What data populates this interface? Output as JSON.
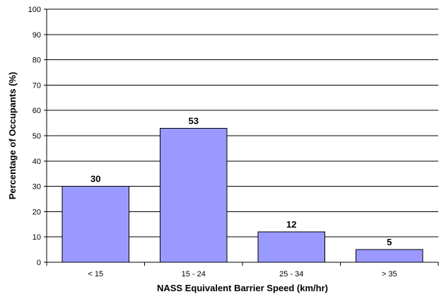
{
  "chart_data": {
    "type": "bar",
    "title": "",
    "xlabel": "NASS Equivalent Barrier Speed (km/hr)",
    "ylabel": "Percentage of Occupants (%)",
    "categories": [
      "< 15",
      "15 - 24",
      "25 - 34",
      "> 35"
    ],
    "values": [
      30,
      53,
      12,
      5
    ],
    "data_labels": [
      "30",
      "53",
      "12",
      "5"
    ],
    "ylim": [
      0,
      100
    ],
    "yticks": [
      "0",
      "10",
      "20",
      "30",
      "40",
      "50",
      "60",
      "70",
      "80",
      "90",
      "100"
    ],
    "grid": true,
    "legend": "none",
    "colors": {
      "bar_fill": "#9999FF",
      "bar_stroke": "#000000",
      "gridline": "#000000",
      "axis": "#000000"
    }
  }
}
